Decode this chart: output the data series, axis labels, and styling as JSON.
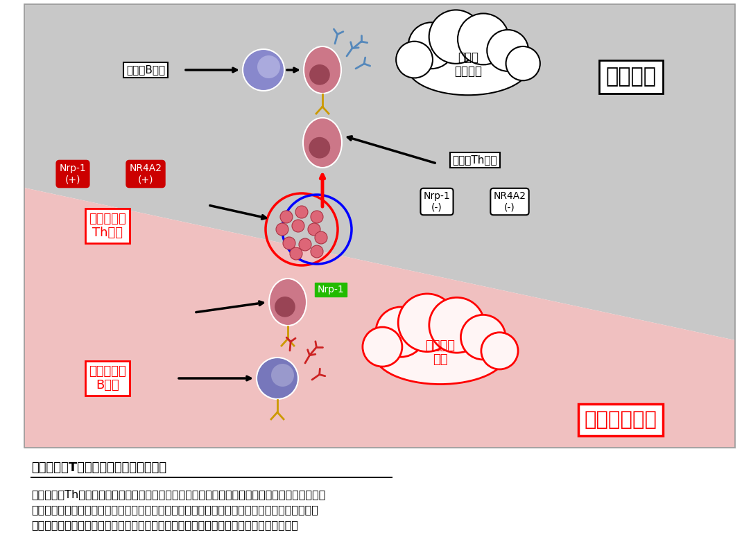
{
  "bg_color": "#ffffff",
  "diagram_bg_gray": "#c8c8c8",
  "diagram_bg_pink": "#f5c0c0",
  "title": "自己反応性T細胞を見分けることの利点",
  "body_text": "自己反応性Th細胞を見分けて、これを標的とした治療法が確立できれば、自己免疫応答のみを選\n択的に阻害し、通常の免疫応答は影響を受けない画期的な方法が実現できる。すなわち体の感染\n防御能は治療により保たれる一方で、自己免疫疾患に関わる免疫応答だけを抑制できる。",
  "kansen_label": "感染防御",
  "jikoimmune_label": "自己免疫疾患",
  "general_bcell_label": "一般のB細胞",
  "general_th_label": "一般のTh細胞",
  "general_antibody_label": "一般の\n抗体産生",
  "jiko_antibody_label": "自己抗体\n産生",
  "jiko_th_label": "自己反応性\nTh細胞",
  "jiko_bcell_label": "自己反応性\nB細胞",
  "nrp1_pos_label": "Nrp-1\n(+)",
  "nr4a2_pos_label": "NR4A2\n(+)",
  "nrp1_neg_label": "Nrp-1\n(-)",
  "nr4a2_neg_label": "NR4A2\n(-)",
  "nrp1_green_label": "Nrp-1"
}
